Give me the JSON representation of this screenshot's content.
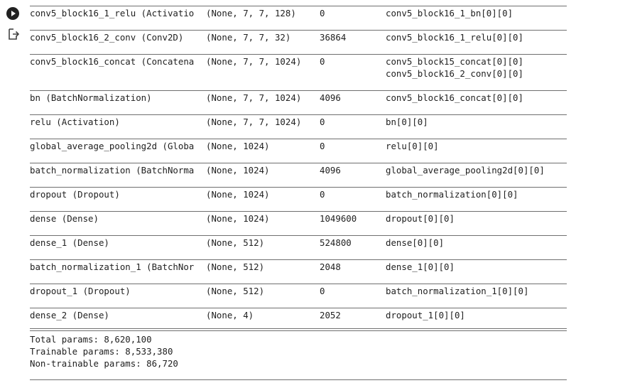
{
  "gutter": {
    "run_icon": "play-circle-icon",
    "output_icon": "output-redirect-icon"
  },
  "rows": [
    {
      "layer": "conv5_block16_1_relu (Activatio",
      "shape": "(None, 7, 7, 128)",
      "params": "0",
      "connected": [
        "conv5_block16_1_bn[0][0]"
      ]
    },
    {
      "layer": "conv5_block16_2_conv (Conv2D)",
      "shape": "(None, 7, 7, 32)",
      "params": "36864",
      "connected": [
        "conv5_block16_1_relu[0][0]"
      ]
    },
    {
      "layer": "conv5_block16_concat (Concatena",
      "shape": "(None, 7, 7, 1024)",
      "params": "0",
      "connected": [
        "conv5_block15_concat[0][0]",
        "conv5_block16_2_conv[0][0]"
      ]
    },
    {
      "layer": "bn (BatchNormalization)",
      "shape": "(None, 7, 7, 1024)",
      "params": "4096",
      "connected": [
        "conv5_block16_concat[0][0]"
      ]
    },
    {
      "layer": "relu (Activation)",
      "shape": "(None, 7, 7, 1024)",
      "params": "0",
      "connected": [
        "bn[0][0]"
      ]
    },
    {
      "layer": "global_average_pooling2d (Globa",
      "shape": "(None, 1024)",
      "params": "0",
      "connected": [
        "relu[0][0]"
      ]
    },
    {
      "layer": "batch_normalization (BatchNorma",
      "shape": "(None, 1024)",
      "params": "4096",
      "connected": [
        "global_average_pooling2d[0][0]"
      ]
    },
    {
      "layer": "dropout (Dropout)",
      "shape": "(None, 1024)",
      "params": "0",
      "connected": [
        "batch_normalization[0][0]"
      ]
    },
    {
      "layer": "dense (Dense)",
      "shape": "(None, 1024)",
      "params": "1049600",
      "connected": [
        "dropout[0][0]"
      ]
    },
    {
      "layer": "dense_1 (Dense)",
      "shape": "(None, 512)",
      "params": "524800",
      "connected": [
        "dense[0][0]"
      ]
    },
    {
      "layer": "batch_normalization_1 (BatchNor",
      "shape": "(None, 512)",
      "params": "2048",
      "connected": [
        "dense_1[0][0]"
      ]
    },
    {
      "layer": "dropout_1 (Dropout)",
      "shape": "(None, 512)",
      "params": "0",
      "connected": [
        "batch_normalization_1[0][0]"
      ]
    },
    {
      "layer": "dense_2 (Dense)",
      "shape": "(None, 4)",
      "params": "2052",
      "connected": [
        "dropout_1[0][0]"
      ]
    }
  ],
  "summary": {
    "total": "Total params: 8,620,100",
    "trainable": "Trainable params: 8,533,380",
    "non_trainable": "Non-trainable params: 86,720"
  }
}
